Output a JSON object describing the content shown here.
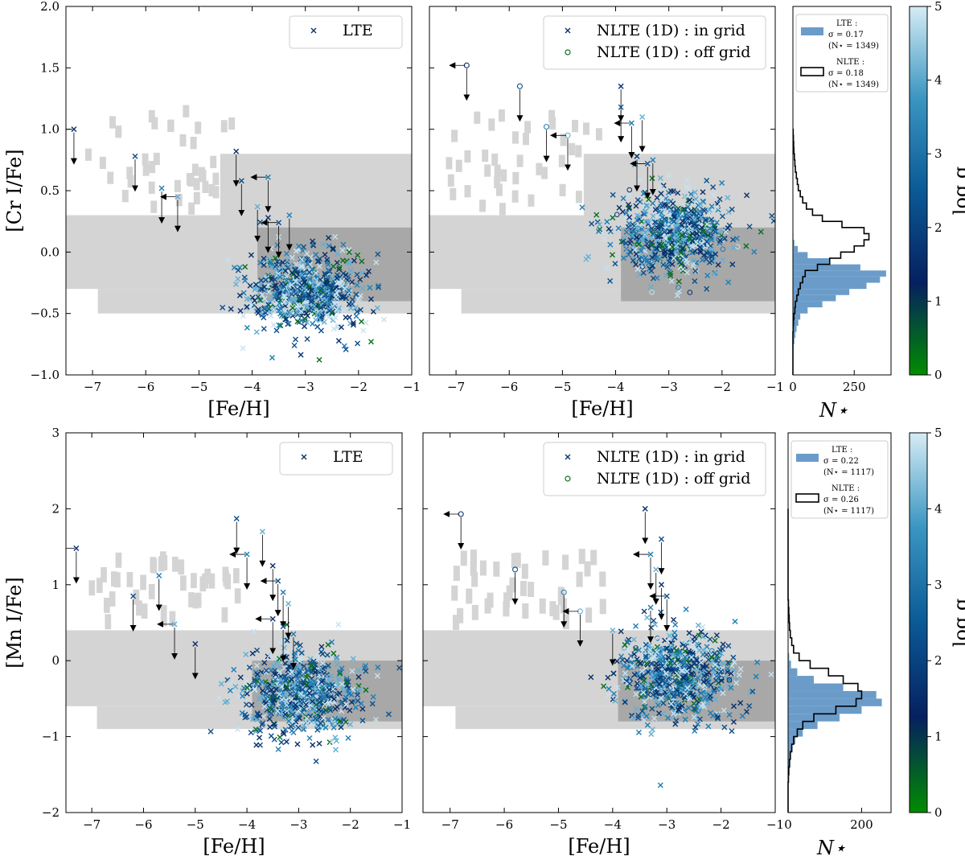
{
  "colors": {
    "scatter_palette": [
      "#0a6e1a",
      "#08306b",
      "#0d4f8a",
      "#1f7db4",
      "#63aed4",
      "#c6e2ef"
    ],
    "lte_hist_fill": "#6b9cc9",
    "region_light": "#d4d4d4",
    "region_dark": "#a8a8a8",
    "colorbar": [
      "#008c00",
      "#062060",
      "#0a5a95",
      "#3a95c1",
      "#d6ecf5"
    ]
  },
  "chart_data": [
    {
      "type": "scatter",
      "id": "cr-lte",
      "xlabel": "[Fe/H]",
      "ylabel": "[Cr I/Fe]",
      "xlim": [
        -7.5,
        -1
      ],
      "ylim": [
        -1,
        2
      ],
      "xticks": [
        -7,
        -6,
        -5,
        -4,
        -3,
        -2,
        -1
      ],
      "yticks": [
        -1.0,
        -0.5,
        0.0,
        0.5,
        1.0,
        1.5,
        2.0
      ],
      "legend": {
        "position": "top-right",
        "entries": [
          {
            "label": "LTE",
            "marker": "x"
          }
        ]
      },
      "cloud": {
        "center": [
          -3.0,
          -0.32
        ],
        "spread": [
          0.55,
          0.16
        ],
        "count": 700
      },
      "upper_limits": [
        [
          -7.35,
          1.0
        ],
        [
          -6.2,
          0.78
        ],
        [
          -5.7,
          0.52
        ],
        [
          -5.4,
          0.45
        ],
        [
          -4.3,
          0.82
        ],
        [
          -4.2,
          0.58
        ],
        [
          -3.7,
          0.61
        ],
        [
          -3.9,
          0.37
        ],
        [
          -3.7,
          0.28
        ],
        [
          -3.5,
          0.24
        ],
        [
          -3.3,
          0.3
        ]
      ]
    },
    {
      "type": "scatter",
      "id": "cr-nlte",
      "xlabel": "[Fe/H]",
      "ylabel": "",
      "xlim": [
        -7.5,
        -1
      ],
      "ylim": [
        -1,
        2
      ],
      "xticks": [
        -7,
        -6,
        -5,
        -4,
        -3,
        -2,
        -1
      ],
      "yticks": [
        -1.0,
        -0.5,
        0.0,
        0.5,
        1.0,
        1.5,
        2.0
      ],
      "legend": {
        "position": "top-right",
        "entries": [
          {
            "label": "NLTE (1D) : in grid",
            "marker": "x"
          },
          {
            "label": "NLTE (1D) : off grid",
            "marker": "o"
          }
        ]
      },
      "cloud": {
        "center": [
          -2.9,
          0.15
        ],
        "spread": [
          0.55,
          0.18
        ],
        "count": 700
      },
      "upper_limits": [
        [
          -6.8,
          1.52
        ],
        [
          -5.8,
          1.35
        ],
        [
          -5.3,
          1.02
        ],
        [
          -4.9,
          0.95
        ],
        [
          -3.9,
          1.35
        ],
        [
          -3.9,
          1.18
        ],
        [
          -3.7,
          1.05
        ],
        [
          -3.5,
          1.1
        ],
        [
          -3.6,
          0.78
        ],
        [
          -3.4,
          0.72
        ],
        [
          -3.3,
          0.75
        ]
      ]
    },
    {
      "type": "scatter",
      "id": "mn-lte",
      "xlabel": "[Fe/H]",
      "ylabel": "[Mn I/Fe]",
      "xlim": [
        -7.5,
        -1
      ],
      "ylim": [
        -2,
        3
      ],
      "xticks": [
        -7,
        -6,
        -5,
        -4,
        -3,
        -2,
        -1
      ],
      "yticks": [
        -2,
        -1,
        0,
        1,
        2,
        3
      ],
      "legend": {
        "position": "top-right",
        "entries": [
          {
            "label": "LTE",
            "marker": "x"
          }
        ]
      },
      "cloud": {
        "center": [
          -3.0,
          -0.45
        ],
        "spread": [
          0.55,
          0.28
        ],
        "count": 700
      },
      "upper_limits": [
        [
          -7.3,
          1.48
        ],
        [
          -6.2,
          0.85
        ],
        [
          -5.7,
          1.12
        ],
        [
          -5.4,
          0.48
        ],
        [
          -5.0,
          0.22
        ],
        [
          -4.2,
          1.87
        ],
        [
          -4.0,
          1.4
        ],
        [
          -3.7,
          1.7
        ],
        [
          -3.5,
          1.25
        ],
        [
          -3.4,
          1.05
        ],
        [
          -3.3,
          0.9
        ],
        [
          -3.2,
          0.75
        ],
        [
          -3.5,
          0.55
        ],
        [
          -3.3,
          0.45
        ],
        [
          -3.1,
          0.35
        ]
      ]
    },
    {
      "type": "scatter",
      "id": "mn-nlte",
      "xlabel": "[Fe/H]",
      "ylabel": "",
      "xlim": [
        -7.5,
        -1
      ],
      "ylim": [
        -2,
        3
      ],
      "xticks": [
        -7,
        -6,
        -5,
        -4,
        -3,
        -2,
        -1
      ],
      "yticks": [
        -2,
        -1,
        0,
        1,
        2,
        3
      ],
      "legend": {
        "position": "top-right",
        "entries": [
          {
            "label": "NLTE (1D) : in grid",
            "marker": "x"
          },
          {
            "label": "NLTE (1D) : off grid",
            "marker": "o"
          }
        ]
      },
      "cloud": {
        "center": [
          -2.8,
          -0.2
        ],
        "spread": [
          0.55,
          0.3
        ],
        "count": 700
      },
      "upper_limits": [
        [
          -6.8,
          1.93
        ],
        [
          -5.8,
          1.2
        ],
        [
          -4.9,
          0.9
        ],
        [
          -4.6,
          0.65
        ],
        [
          -3.4,
          2.0
        ],
        [
          -3.1,
          1.6
        ],
        [
          -3.3,
          1.4
        ],
        [
          -3.2,
          1.2
        ],
        [
          -3.1,
          1.0
        ],
        [
          -3.0,
          0.85
        ],
        [
          -3.3,
          0.7
        ],
        [
          -4.0,
          0.4
        ]
      ]
    },
    {
      "type": "bar",
      "id": "cr-hist",
      "orientation": "horizontal",
      "xlabel": "N⋆",
      "xlim": [
        0,
        400
      ],
      "xticks": [
        0,
        250
      ],
      "ylim": [
        -1,
        2
      ],
      "bin_edges": [
        -1.0,
        -0.95,
        -0.9,
        -0.85,
        -0.8,
        -0.75,
        -0.7,
        -0.65,
        -0.6,
        -0.55,
        -0.5,
        -0.45,
        -0.4,
        -0.35,
        -0.3,
        -0.25,
        -0.2,
        -0.15,
        -0.1,
        -0.05,
        0.0,
        0.05,
        0.1,
        0.15,
        0.2,
        0.25,
        0.3,
        0.35,
        0.4,
        0.45,
        0.5,
        0.55,
        0.6,
        0.65,
        0.7,
        0.75,
        0.8,
        0.85,
        0.9,
        0.95,
        1.0
      ],
      "series": [
        {
          "name": "LTE",
          "stat": "σ = 0.17",
          "n": "(N⋆ = 1349)",
          "style": "filled",
          "values": [
            0,
            0,
            0,
            0,
            2,
            6,
            10,
            15,
            22,
            30,
            60,
            120,
            175,
            230,
            300,
            355,
            380,
            275,
            150,
            60,
            20,
            6,
            2,
            1,
            0,
            0,
            0,
            0,
            0,
            0,
            0,
            0,
            0,
            0,
            0,
            0,
            0,
            0,
            0,
            0
          ]
        },
        {
          "name": "NLTE",
          "stat": "σ = 0.18",
          "n": "(N⋆ = 1349)",
          "style": "step",
          "values": [
            0,
            0,
            0,
            0,
            0,
            0,
            0,
            1,
            2,
            4,
            8,
            10,
            16,
            22,
            30,
            40,
            50,
            100,
            150,
            195,
            250,
            290,
            310,
            290,
            200,
            120,
            80,
            55,
            40,
            30,
            22,
            18,
            14,
            10,
            8,
            6,
            4,
            3,
            2,
            1
          ]
        }
      ]
    },
    {
      "type": "bar",
      "id": "mn-hist",
      "orientation": "horizontal",
      "xlabel": "N⋆",
      "xlim": [
        0,
        280
      ],
      "xticks": [
        0,
        200
      ],
      "ylim": [
        -2,
        3
      ],
      "bin_edges": [
        -2.0,
        -1.9,
        -1.8,
        -1.7,
        -1.6,
        -1.5,
        -1.4,
        -1.3,
        -1.2,
        -1.1,
        -1.0,
        -0.9,
        -0.8,
        -0.7,
        -0.6,
        -0.5,
        -0.4,
        -0.3,
        -0.2,
        -0.1,
        0.0,
        0.1,
        0.2,
        0.3,
        0.4,
        0.5,
        0.6,
        0.7,
        0.8,
        0.9,
        1.0,
        1.1,
        1.2,
        1.3,
        1.4,
        1.5,
        1.6,
        1.7,
        1.8,
        1.9,
        2.0
      ],
      "series": [
        {
          "name": "LTE",
          "stat": "σ = 0.22",
          "n": "(N⋆ = 1117)",
          "style": "filled",
          "values": [
            0,
            0,
            0,
            0,
            1,
            2,
            4,
            8,
            12,
            20,
            40,
            80,
            140,
            200,
            255,
            240,
            150,
            70,
            25,
            8,
            3,
            1,
            0,
            0,
            0,
            0,
            0,
            0,
            0,
            0,
            0,
            0,
            0,
            0,
            0,
            0,
            0,
            0,
            0,
            0
          ]
        },
        {
          "name": "NLTE",
          "stat": "σ = 0.26",
          "n": "(N⋆ = 1117)",
          "style": "step",
          "values": [
            0,
            0,
            0,
            0,
            1,
            2,
            4,
            6,
            10,
            15,
            25,
            40,
            70,
            130,
            185,
            200,
            190,
            150,
            110,
            60,
            30,
            15,
            10,
            6,
            4,
            3,
            2,
            1,
            0,
            0,
            0,
            0,
            0,
            0,
            0,
            0,
            0,
            0,
            0,
            0
          ]
        }
      ]
    },
    {
      "type": "heatmap",
      "id": "cr-colorbar",
      "label": "log g",
      "range": [
        0,
        5
      ],
      "ticks": [
        0,
        1,
        2,
        3,
        4,
        5
      ]
    },
    {
      "type": "heatmap",
      "id": "mn-colorbar",
      "label": "log g",
      "range": [
        0,
        5
      ],
      "ticks": [
        0,
        1,
        2,
        3,
        4,
        5
      ]
    }
  ]
}
